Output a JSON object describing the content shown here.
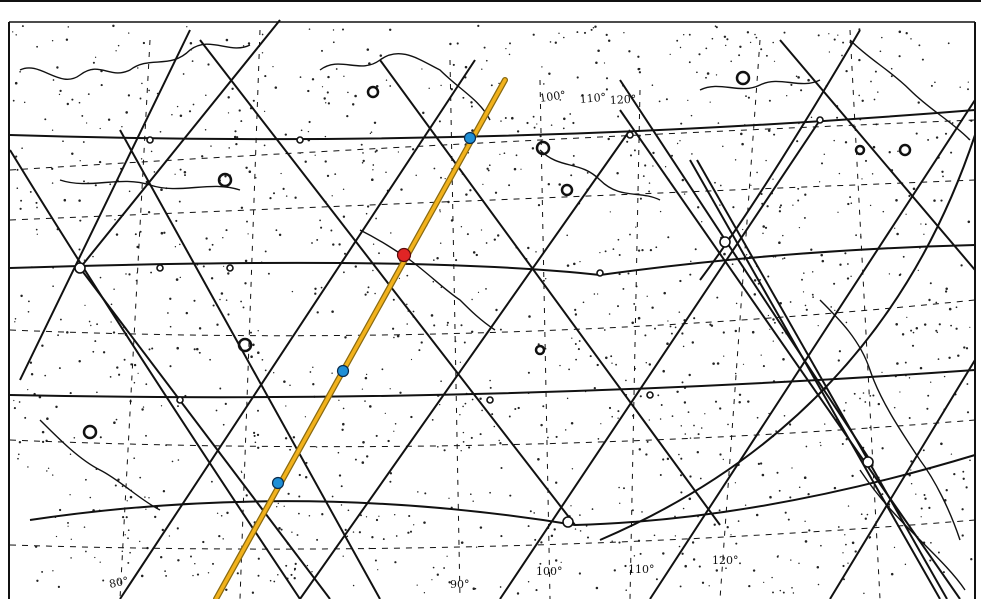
{
  "map": {
    "tick_labels": {
      "bottom_80": "80°",
      "bottom_90": "90°",
      "bottom_100": "100°",
      "bottom_110": "110°",
      "bottom_120": "120°",
      "top_100": "100°",
      "top_110": "110°",
      "top_120": "120°"
    },
    "colors": {
      "background": "#ffffff",
      "grid_line": "#111111",
      "highlight_line": "#f2b21c",
      "highlight_outline": "#8a6a10",
      "marker_blue": "#1f8fd6",
      "marker_red": "#e02525"
    },
    "markers": [
      {
        "name": "north-blue-point",
        "color": "blue"
      },
      {
        "name": "central-red-point",
        "color": "red"
      },
      {
        "name": "mid-blue-point",
        "color": "blue"
      },
      {
        "name": "south-blue-point",
        "color": "blue"
      }
    ]
  }
}
